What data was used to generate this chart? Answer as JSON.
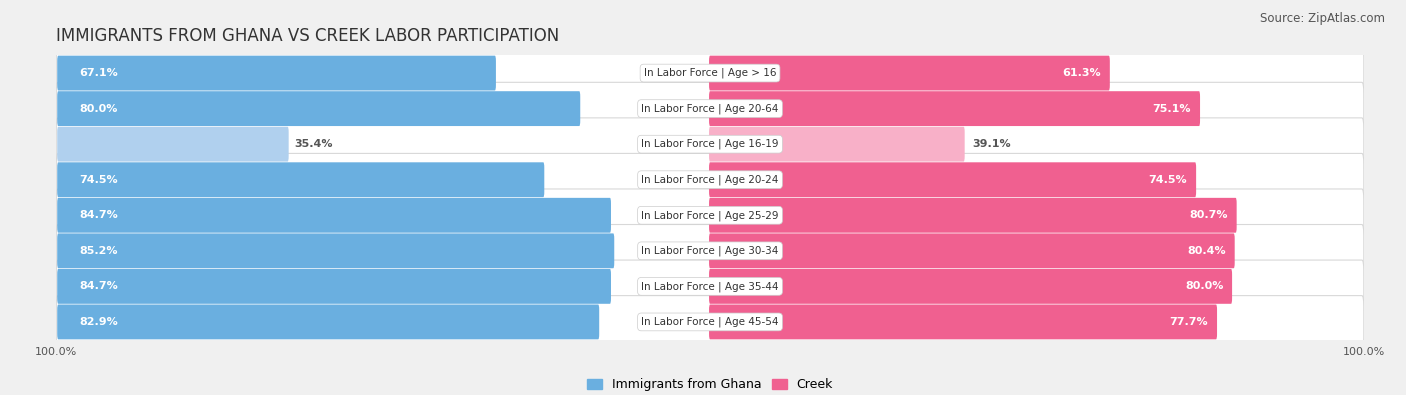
{
  "title": "IMMIGRANTS FROM GHANA VS CREEK LABOR PARTICIPATION",
  "source": "Source: ZipAtlas.com",
  "categories": [
    "In Labor Force | Age > 16",
    "In Labor Force | Age 20-64",
    "In Labor Force | Age 16-19",
    "In Labor Force | Age 20-24",
    "In Labor Force | Age 25-29",
    "In Labor Force | Age 30-34",
    "In Labor Force | Age 35-44",
    "In Labor Force | Age 45-54"
  ],
  "ghana_values": [
    67.1,
    80.0,
    35.4,
    74.5,
    84.7,
    85.2,
    84.7,
    82.9
  ],
  "creek_values": [
    61.3,
    75.1,
    39.1,
    74.5,
    80.7,
    80.4,
    80.0,
    77.7
  ],
  "ghana_color_full": "#6aafe0",
  "ghana_color_light": "#b0d0ee",
  "creek_color_full": "#f06090",
  "creek_color_light": "#f8b0c8",
  "label_color_dark": "#555555",
  "max_value": 100.0,
  "background_color": "#f0f0f0",
  "row_bg_color": "#ffffff",
  "title_fontsize": 12,
  "source_fontsize": 8.5,
  "label_fontsize": 8,
  "category_fontsize": 7.5,
  "legend_fontsize": 9,
  "axis_label_fontsize": 8
}
